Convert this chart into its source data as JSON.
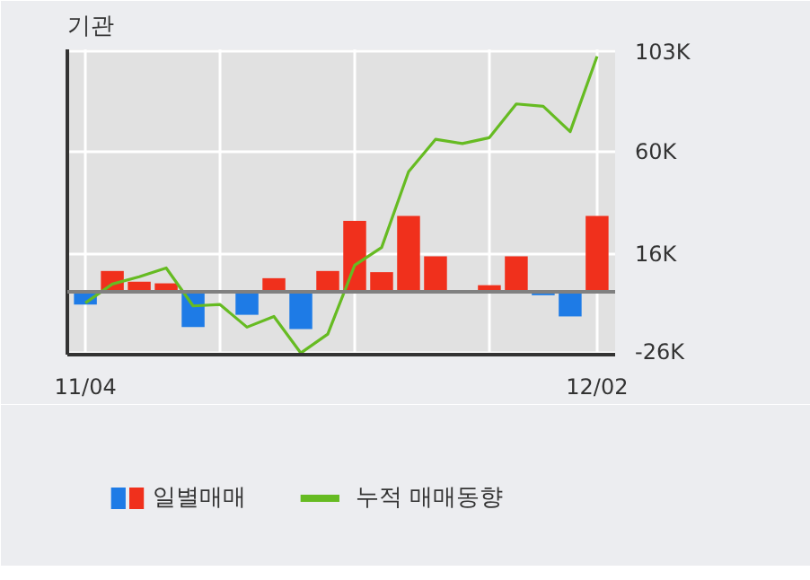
{
  "chart_data": {
    "type": "bar",
    "title": "기관",
    "categories": [
      "11/04",
      null,
      null,
      null,
      null,
      null,
      null,
      null,
      null,
      null,
      null,
      null,
      null,
      null,
      null,
      null,
      null,
      null,
      null,
      "12/02"
    ],
    "series": [
      {
        "name": "일별매매",
        "type": "bar",
        "colors": [
          "#1e7be6",
          "#f0301c",
          "#f0301c",
          "#f0301c",
          "#1e7be6",
          "#1e7be6",
          "#1e7be6",
          "#f0301c",
          "#1e7be6",
          "#f0301c",
          "#f0301c",
          "#f0301c",
          "#f0301c",
          "#f0301c",
          "#f0301c",
          "#f0301c",
          "#f0301c",
          "#1e7be6",
          "#1e7be6",
          "#f0301c"
        ],
        "values": [
          -5.5,
          8.9,
          4.3,
          3.6,
          -15.2,
          0,
          -9.9,
          5.8,
          -16,
          8.9,
          30.4,
          8.4,
          32.5,
          15.2,
          0,
          2.8,
          15.2,
          -1.5,
          -10.6,
          32.5
        ]
      },
      {
        "name": "누적 매매동향",
        "type": "line",
        "color": "#66bb22",
        "values": [
          -4.8,
          3.3,
          6.4,
          10.2,
          -6.1,
          -5.5,
          -15.2,
          -10.6,
          -26.3,
          -18.2,
          11.4,
          19,
          51.5,
          65.4,
          63.6,
          66.1,
          80.6,
          79.6,
          68.7,
          101
        ]
      }
    ],
    "ylim": [
      -27,
      104
    ],
    "yticks": [
      {
        "value": 103,
        "label": "103K"
      },
      {
        "value": 60,
        "label": "60K"
      },
      {
        "value": 16,
        "label": "16K"
      },
      {
        "value": -26,
        "label": "-26K"
      }
    ],
    "ref_lines": [
      {
        "axis": "y",
        "value": 0,
        "color": "#808080"
      }
    ],
    "grid": true,
    "legend": "bottom"
  }
}
